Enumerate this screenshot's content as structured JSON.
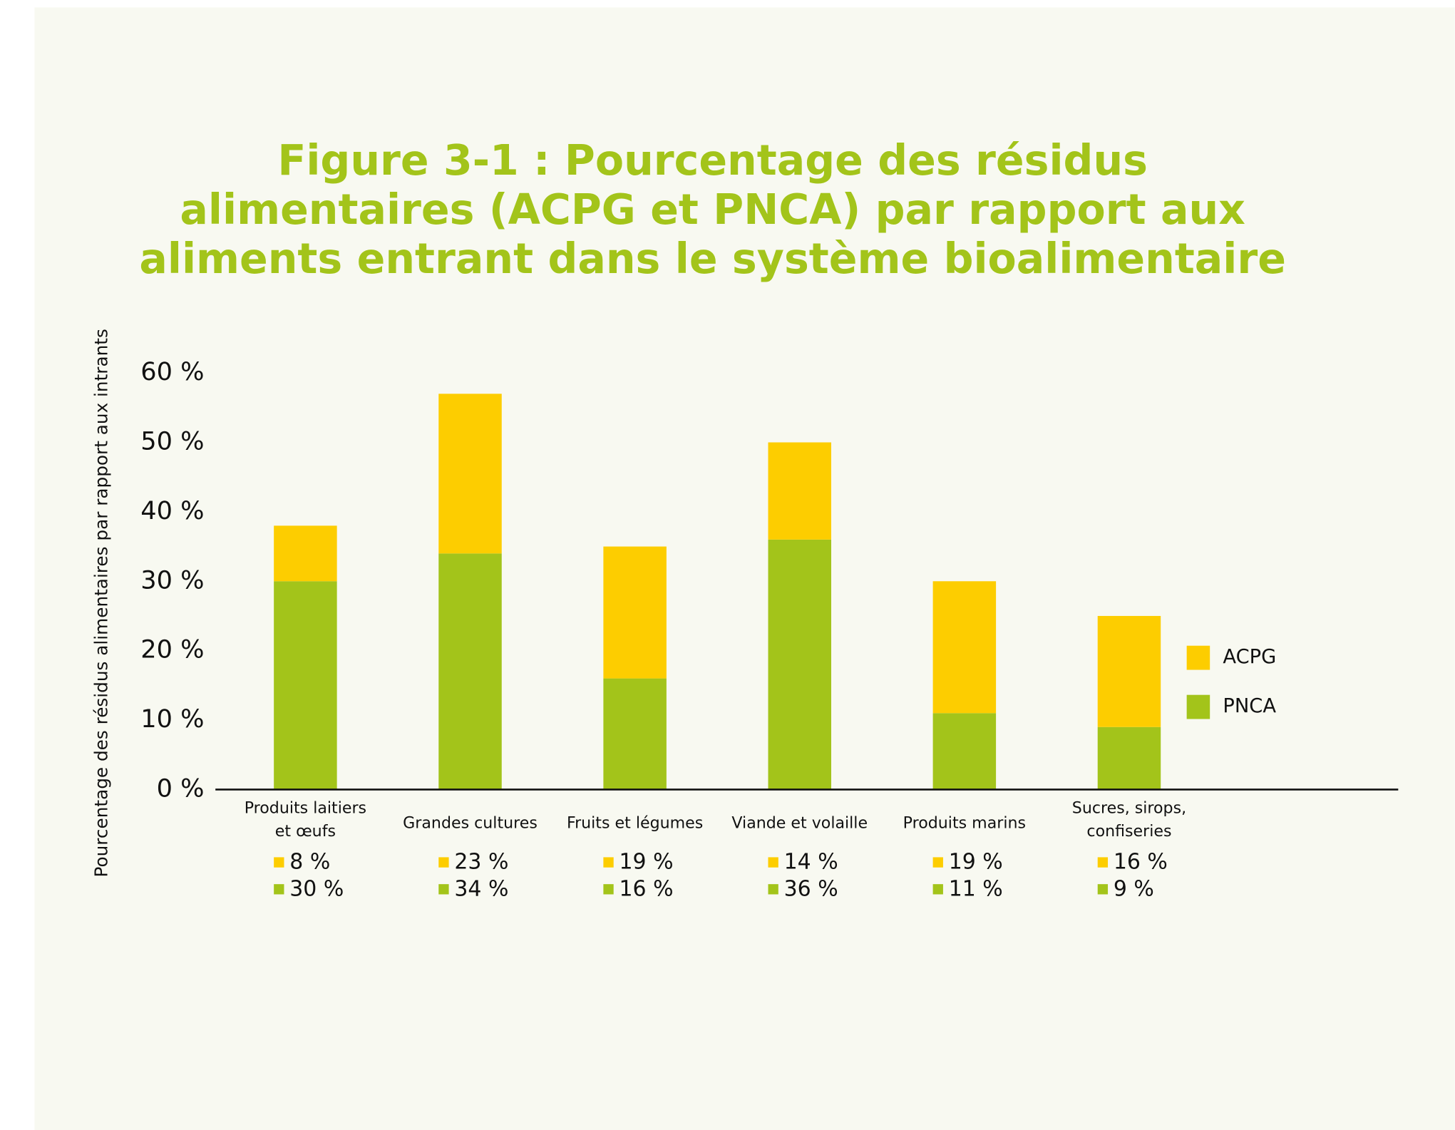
{
  "chart_data": {
    "type": "stacked-bar",
    "title": "Figure 3-1 : Pourcentage des résidus\nalimentaires (ACPG et PNCA) par rapport aux\naliments entrant dans le système bioalimentaire",
    "y_label": "Pourcentage des résidus alimentaires par rapport aux intrants",
    "categories": [
      "Produits laitiers\net œufs",
      "Grandes cultures",
      "Fruits et légumes",
      "Viande et volaille",
      "Produits marins",
      "Sucres, sirops,\nconfiseries"
    ],
    "series": [
      {
        "name": "PNCA",
        "color": "#a3c41a",
        "values": [
          30,
          34,
          16,
          36,
          11,
          9
        ],
        "value_labels": [
          "30 %",
          "34 %",
          "16 %",
          "36 %",
          "11 %",
          "9 %"
        ]
      },
      {
        "name": "ACPG",
        "color": "#fdcd00",
        "values": [
          8,
          23,
          19,
          14,
          19,
          16
        ],
        "value_labels": [
          "8 %",
          "23 %",
          "19 %",
          "14 %",
          "19 %",
          "16 %"
        ]
      }
    ],
    "ylim": [
      0,
      60
    ],
    "yticks": [
      {
        "value": 0,
        "label": "0 %"
      },
      {
        "value": 10,
        "label": "10 %"
      },
      {
        "value": 20,
        "label": "20 %"
      },
      {
        "value": 30,
        "label": "30 %"
      },
      {
        "value": 40,
        "label": "40 %"
      },
      {
        "value": 50,
        "label": "50 %"
      },
      {
        "value": 60,
        "label": "60 %"
      }
    ],
    "legend": "right",
    "grid": false
  }
}
